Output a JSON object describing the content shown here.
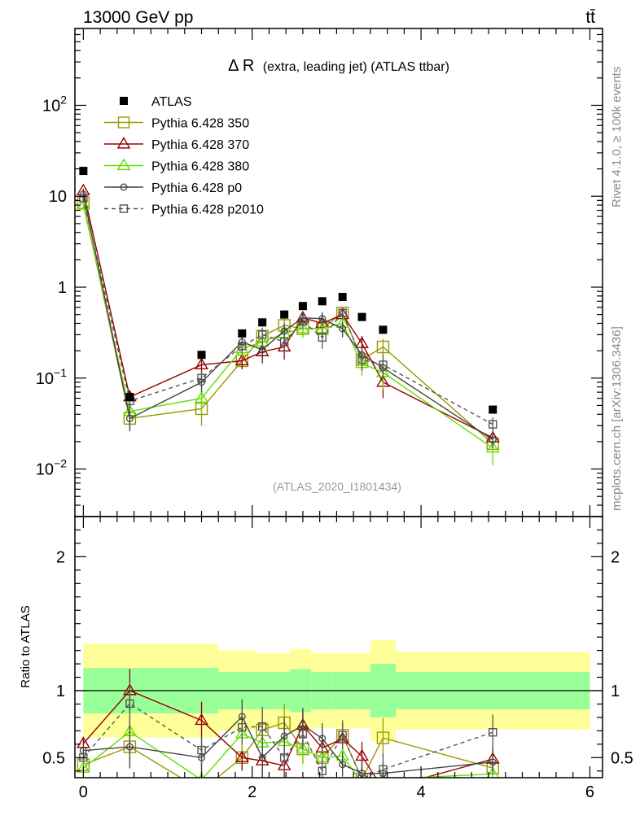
{
  "header": {
    "left_label": "13000 GeV pp",
    "right_label": "tt̄",
    "side_label_top": "Rivet 4.1.0, ≥ 100k events",
    "side_label_bottom": "mcplots.cern.ch [arXiv:1306.3436]"
  },
  "chart_data": {
    "type": "line",
    "title_main": "Δ R",
    "title_sub": "(extra, leading jet) (ATLAS ttbar)",
    "analysis_label": "(ATLAS_2020_I1801434)",
    "xlabel": "",
    "ylabel_main": "",
    "ylabel_ratio": "Ratio to ATLAS",
    "xlim": [
      -0.1,
      6.15
    ],
    "ylim_main": [
      0.003,
      700
    ],
    "ylim_ratio": [
      0.35,
      2.3
    ],
    "yscale_main": "log",
    "x_ticks": [
      "0",
      "2",
      "4",
      "6"
    ],
    "y_ticks_main": [
      "10^-2",
      "10^-1",
      "1",
      "10",
      "10^2"
    ],
    "y_ticks_ratio": [
      "0.5",
      "1",
      "2"
    ],
    "bin_edges": [
      0.0,
      1.1,
      1.6,
      2.05,
      2.25,
      2.45,
      2.7,
      2.95,
      3.2,
      3.4,
      3.7,
      6.0
    ],
    "x": [
      0.0,
      0.55,
      1.4,
      1.88,
      2.12,
      2.38,
      2.6,
      2.83,
      3.07,
      3.3,
      3.55,
      4.85
    ],
    "data": {
      "name": "ATLAS",
      "values": [
        19,
        0.062,
        0.18,
        0.31,
        0.41,
        0.5,
        0.62,
        0.7,
        0.78,
        0.47,
        0.34,
        0.045
      ],
      "band_inner": [
        0.17,
        0.17,
        0.14,
        0.14,
        0.14,
        0.16,
        0.14,
        0.14,
        0.14,
        0.2,
        0.14,
        0.14
      ],
      "band_outer": [
        0.35,
        0.35,
        0.3,
        0.28,
        0.28,
        0.31,
        0.28,
        0.28,
        0.28,
        0.38,
        0.29,
        0.29
      ]
    },
    "series": [
      {
        "name": "Pythia 6.428 350",
        "color": "#999900",
        "marker": "square-open",
        "dash": false,
        "values": [
          8.5,
          0.036,
          0.046,
          0.155,
          0.29,
          0.38,
          0.35,
          0.35,
          0.52,
          0.16,
          0.22,
          0.019
        ],
        "err": [
          0.5,
          0.004,
          0.016,
          0.03,
          0.06,
          0.07,
          0.07,
          0.07,
          0.09,
          0.04,
          0.05,
          0.003
        ]
      },
      {
        "name": "Pythia 6.428 370",
        "color": "#990000",
        "marker": "triangle-open",
        "dash": false,
        "values": [
          11.5,
          0.062,
          0.14,
          0.155,
          0.195,
          0.22,
          0.46,
          0.4,
          0.5,
          0.24,
          0.09,
          0.022
        ],
        "err": [
          0.6,
          0.01,
          0.025,
          0.03,
          0.05,
          0.06,
          0.07,
          0.07,
          0.08,
          0.05,
          0.03,
          0.004
        ]
      },
      {
        "name": "Pythia 6.428 380",
        "color": "#66dd00",
        "marker": "triangle-open",
        "dash": false,
        "values": [
          8.0,
          0.043,
          0.06,
          0.21,
          0.25,
          0.31,
          0.35,
          0.35,
          0.4,
          0.145,
          0.115,
          0.017
        ],
        "err": [
          0.5,
          0.015,
          0.02,
          0.04,
          0.06,
          0.07,
          0.07,
          0.07,
          0.08,
          0.04,
          0.04,
          0.006
        ]
      },
      {
        "name": "Pythia 6.428 p0",
        "color": "#444444",
        "marker": "circle-open",
        "dash": false,
        "values": [
          10.5,
          0.036,
          0.09,
          0.25,
          0.205,
          0.33,
          0.46,
          0.45,
          0.35,
          0.18,
          0.13,
          0.021
        ],
        "err": [
          0.6,
          0.01,
          0.02,
          0.04,
          0.05,
          0.07,
          0.08,
          0.08,
          0.07,
          0.04,
          0.03,
          0.004
        ]
      },
      {
        "name": "Pythia 6.428 p2010",
        "color": "#555555",
        "marker": "square-open",
        "dash": true,
        "values": [
          9.5,
          0.056,
          0.1,
          0.225,
          0.3,
          0.25,
          0.42,
          0.28,
          0.52,
          0.16,
          0.14,
          0.031
        ],
        "err": [
          0.6,
          0.01,
          0.02,
          0.04,
          0.06,
          0.06,
          0.07,
          0.07,
          0.08,
          0.04,
          0.04,
          0.006
        ]
      }
    ]
  }
}
